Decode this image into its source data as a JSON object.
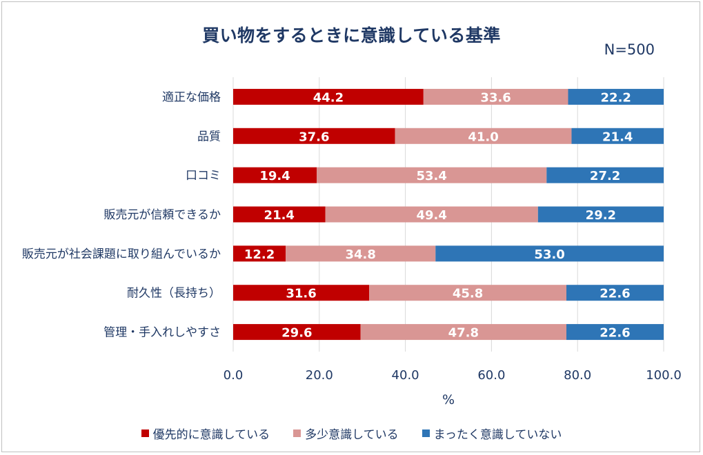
{
  "chart_data": {
    "type": "bar",
    "orientation": "horizontal",
    "stacked": true,
    "title": "買い物をするときに意識している基準",
    "sample_size": "N=500",
    "xlabel": "%",
    "xlim": [
      0,
      100
    ],
    "x_ticks": [
      "0.0",
      "20.0",
      "40.0",
      "60.0",
      "80.0",
      "100.0"
    ],
    "x_tick_values": [
      0,
      20,
      40,
      60,
      80,
      100
    ],
    "categories": [
      "適正な価格",
      "品質",
      "口コミ",
      "販売元が信頼できるか",
      "販売元が社会課題に取り組んでいるか",
      "耐久性（長持ち）",
      "管理・手入れしやすさ"
    ],
    "series": [
      {
        "name": "優先的に意識している",
        "color": "#c00000",
        "values": [
          44.2,
          37.6,
          19.4,
          21.4,
          12.2,
          31.6,
          29.6
        ]
      },
      {
        "name": "多少意識している",
        "color": "#d99694",
        "values": [
          33.6,
          41.0,
          53.4,
          49.4,
          34.8,
          45.8,
          47.8
        ]
      },
      {
        "name": "まったく意識していない",
        "color": "#2e75b6",
        "values": [
          22.2,
          21.4,
          27.2,
          29.2,
          53.0,
          22.6,
          22.6
        ]
      }
    ],
    "grid": true,
    "legend_position": "bottom"
  }
}
